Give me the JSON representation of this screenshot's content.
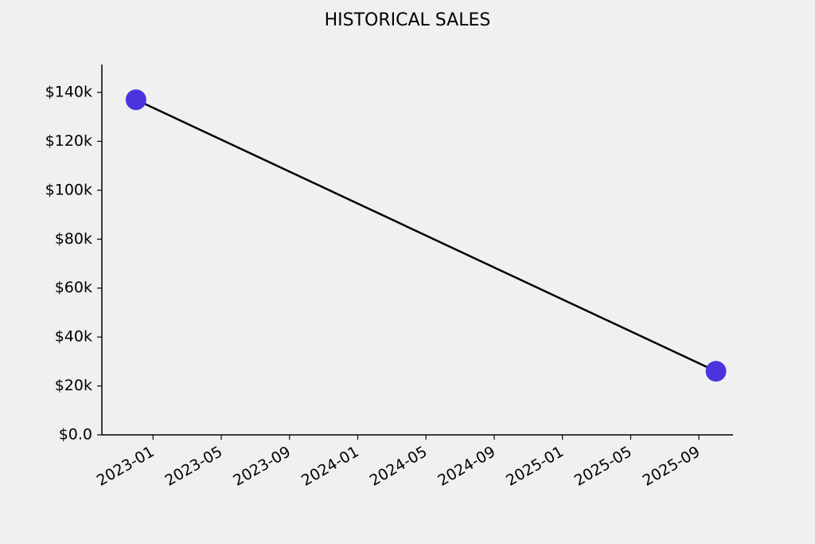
{
  "chart_data": {
    "type": "line",
    "title": "HISTORICAL SALES",
    "x": [
      "2022-12",
      "2025-10"
    ],
    "series": [
      {
        "values": [
          137000,
          26000
        ],
        "color": "#000000",
        "marker_color": "#4a35dc"
      }
    ],
    "xlim": [
      "2022-10",
      "2025-11"
    ],
    "xticks": [
      "2023-01",
      "2023-05",
      "2023-09",
      "2024-01",
      "2024-05",
      "2024-09",
      "2025-01",
      "2025-05",
      "2025-09"
    ],
    "ylim": [
      0,
      151400
    ],
    "yticks": [
      {
        "value": 0,
        "label": "$0.0"
      },
      {
        "value": 20000,
        "label": "$20k"
      },
      {
        "value": 40000,
        "label": "$40k"
      },
      {
        "value": 60000,
        "label": "$60k"
      },
      {
        "value": 80000,
        "label": "$80k"
      },
      {
        "value": 100000,
        "label": "$100k"
      },
      {
        "value": 120000,
        "label": "$120k"
      },
      {
        "value": 140000,
        "label": "$140k"
      }
    ],
    "grid": false
  }
}
